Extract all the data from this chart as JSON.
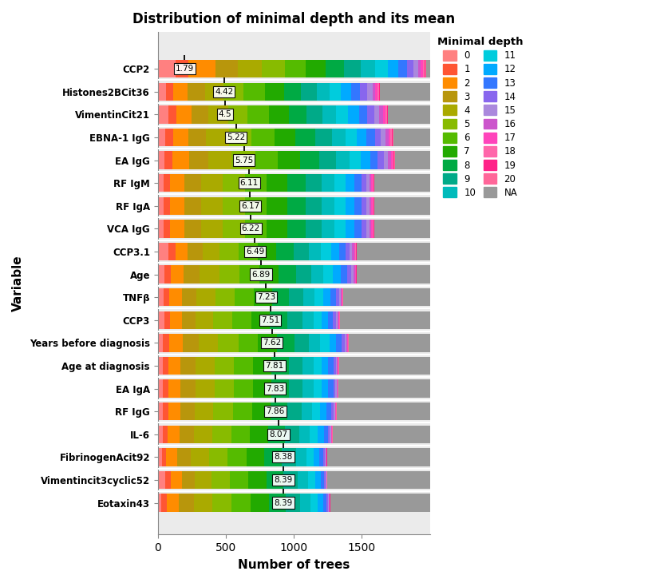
{
  "title": "Distribution of minimal depth and its mean",
  "xlabel": "Number of trees",
  "ylabel": "Variable",
  "variables": [
    "CCP2",
    "Histones2BCit36",
    "VimentinCit21",
    "EBNA-1 IgG",
    "EA IgG",
    "RF IgM",
    "RF IgA",
    "VCA IgG",
    "CCP3.1",
    "Age",
    "TNFβ",
    "CCP3",
    "Years before diagnosis",
    "Age at diagnosis",
    "EA IgA",
    "RF IgG",
    "IL-6",
    "FibrinogenAcit92",
    "Vimentincit3cyclic52",
    "Eotaxin43"
  ],
  "means": [
    1.79,
    4.42,
    4.5,
    5.22,
    5.75,
    6.11,
    6.17,
    6.22,
    6.49,
    6.89,
    7.23,
    7.51,
    7.62,
    7.81,
    7.83,
    7.86,
    8.07,
    8.38,
    8.39,
    8.39
  ],
  "depth_colors": [
    "#FF8080",
    "#FF5533",
    "#FF8C00",
    "#B8960C",
    "#AAAA00",
    "#88BB00",
    "#55BB00",
    "#22AA00",
    "#00AA44",
    "#00AA88",
    "#00BBBB",
    "#00CCDD",
    "#00AAFF",
    "#3377FF",
    "#8866EE",
    "#AA88DD",
    "#CC55CC",
    "#FF44BB",
    "#FF66AA",
    "#FF2288",
    "#FF6699",
    "#999999"
  ],
  "total_trees": 2000,
  "bar_data": [
    [
      120,
      80,
      180,
      150,
      160,
      150,
      140,
      130,
      120,
      110,
      100,
      80,
      70,
      60,
      40,
      30,
      20,
      15,
      10,
      5,
      5,
      25
    ],
    [
      60,
      50,
      100,
      120,
      130,
      140,
      150,
      130,
      120,
      110,
      90,
      80,
      70,
      60,
      50,
      40,
      20,
      15,
      10,
      5,
      3,
      347
    ],
    [
      70,
      55,
      100,
      110,
      130,
      130,
      140,
      130,
      120,
      105,
      90,
      80,
      70,
      55,
      45,
      35,
      25,
      15,
      10,
      5,
      3,
      277
    ],
    [
      50,
      50,
      100,
      120,
      150,
      150,
      150,
      140,
      130,
      110,
      90,
      75,
      65,
      55,
      40,
      30,
      20,
      15,
      10,
      5,
      3,
      242
    ],
    [
      45,
      50,
      110,
      130,
      150,
      160,
      150,
      145,
      130,
      110,
      90,
      75,
      60,
      50,
      38,
      28,
      20,
      12,
      8,
      4,
      2,
      233
    ],
    [
      40,
      45,
      100,
      120,
      150,
      155,
      150,
      145,
      130,
      110,
      90,
      75,
      60,
      50,
      35,
      22,
      15,
      10,
      6,
      3,
      2,
      387
    ],
    [
      40,
      45,
      100,
      120,
      150,
      155,
      150,
      145,
      130,
      110,
      90,
      75,
      60,
      50,
      35,
      22,
      15,
      10,
      6,
      3,
      2,
      387
    ],
    [
      40,
      45,
      100,
      120,
      150,
      155,
      150,
      145,
      130,
      110,
      90,
      75,
      60,
      50,
      35,
      22,
      15,
      10,
      6,
      3,
      2,
      387
    ],
    [
      80,
      50,
      90,
      110,
      120,
      140,
      145,
      135,
      125,
      110,
      90,
      75,
      60,
      45,
      30,
      20,
      15,
      8,
      5,
      3,
      2,
      537
    ],
    [
      50,
      45,
      95,
      115,
      145,
      150,
      145,
      140,
      130,
      110,
      88,
      73,
      58,
      45,
      28,
      18,
      10,
      6,
      4,
      2,
      2,
      537
    ],
    [
      45,
      45,
      95,
      115,
      145,
      150,
      145,
      140,
      130,
      110,
      88,
      70,
      55,
      40,
      25,
      12,
      7,
      5,
      3,
      2,
      2,
      671
    ],
    [
      50,
      45,
      90,
      105,
      135,
      150,
      148,
      142,
      135,
      112,
      85,
      65,
      50,
      38,
      22,
      12,
      6,
      4,
      2,
      2,
      2,
      695
    ],
    [
      40,
      45,
      100,
      120,
      148,
      152,
      148,
      142,
      132,
      110,
      85,
      68,
      52,
      40,
      22,
      12,
      7,
      4,
      3,
      2,
      2,
      612
    ],
    [
      40,
      42,
      95,
      115,
      145,
      150,
      148,
      142,
      132,
      110,
      82,
      65,
      50,
      38,
      20,
      10,
      5,
      3,
      2,
      2,
      2,
      702
    ],
    [
      40,
      42,
      95,
      115,
      145,
      150,
      148,
      142,
      132,
      110,
      82,
      65,
      50,
      38,
      18,
      10,
      5,
      3,
      2,
      2,
      2,
      704
    ],
    [
      40,
      42,
      92,
      112,
      142,
      150,
      148,
      142,
      132,
      110,
      82,
      62,
      48,
      35,
      18,
      10,
      5,
      3,
      2,
      2,
      2,
      719
    ],
    [
      38,
      40,
      90,
      110,
      140,
      148,
      145,
      140,
      132,
      110,
      82,
      60,
      45,
      33,
      15,
      8,
      4,
      3,
      2,
      2,
      2,
      751
    ],
    [
      30,
      35,
      85,
      105,
      138,
      145,
      145,
      140,
      132,
      110,
      80,
      58,
      43,
      30,
      12,
      7,
      3,
      2,
      2,
      2,
      2,
      793
    ],
    [
      60,
      40,
      85,
      100,
      132,
      142,
      143,
      140,
      132,
      110,
      80,
      55,
      40,
      28,
      10,
      6,
      3,
      2,
      2,
      2,
      2,
      792
    ],
    [
      30,
      40,
      100,
      120,
      148,
      155,
      150,
      145,
      138,
      112,
      82,
      60,
      43,
      30,
      12,
      6,
      3,
      2,
      2,
      2,
      2,
      798
    ]
  ],
  "xlim": [
    0,
    2000
  ],
  "xticks": [
    0,
    500,
    1000,
    1500
  ],
  "legend_labels": [
    "0",
    "1",
    "2",
    "3",
    "4",
    "5",
    "6",
    "7",
    "8",
    "9",
    "10",
    "11",
    "12",
    "13",
    "14",
    "15",
    "16",
    "17",
    "18",
    "19",
    "20",
    "NA"
  ],
  "bg_color": "#FFFFFF",
  "panel_bg": "#EBEBEB"
}
